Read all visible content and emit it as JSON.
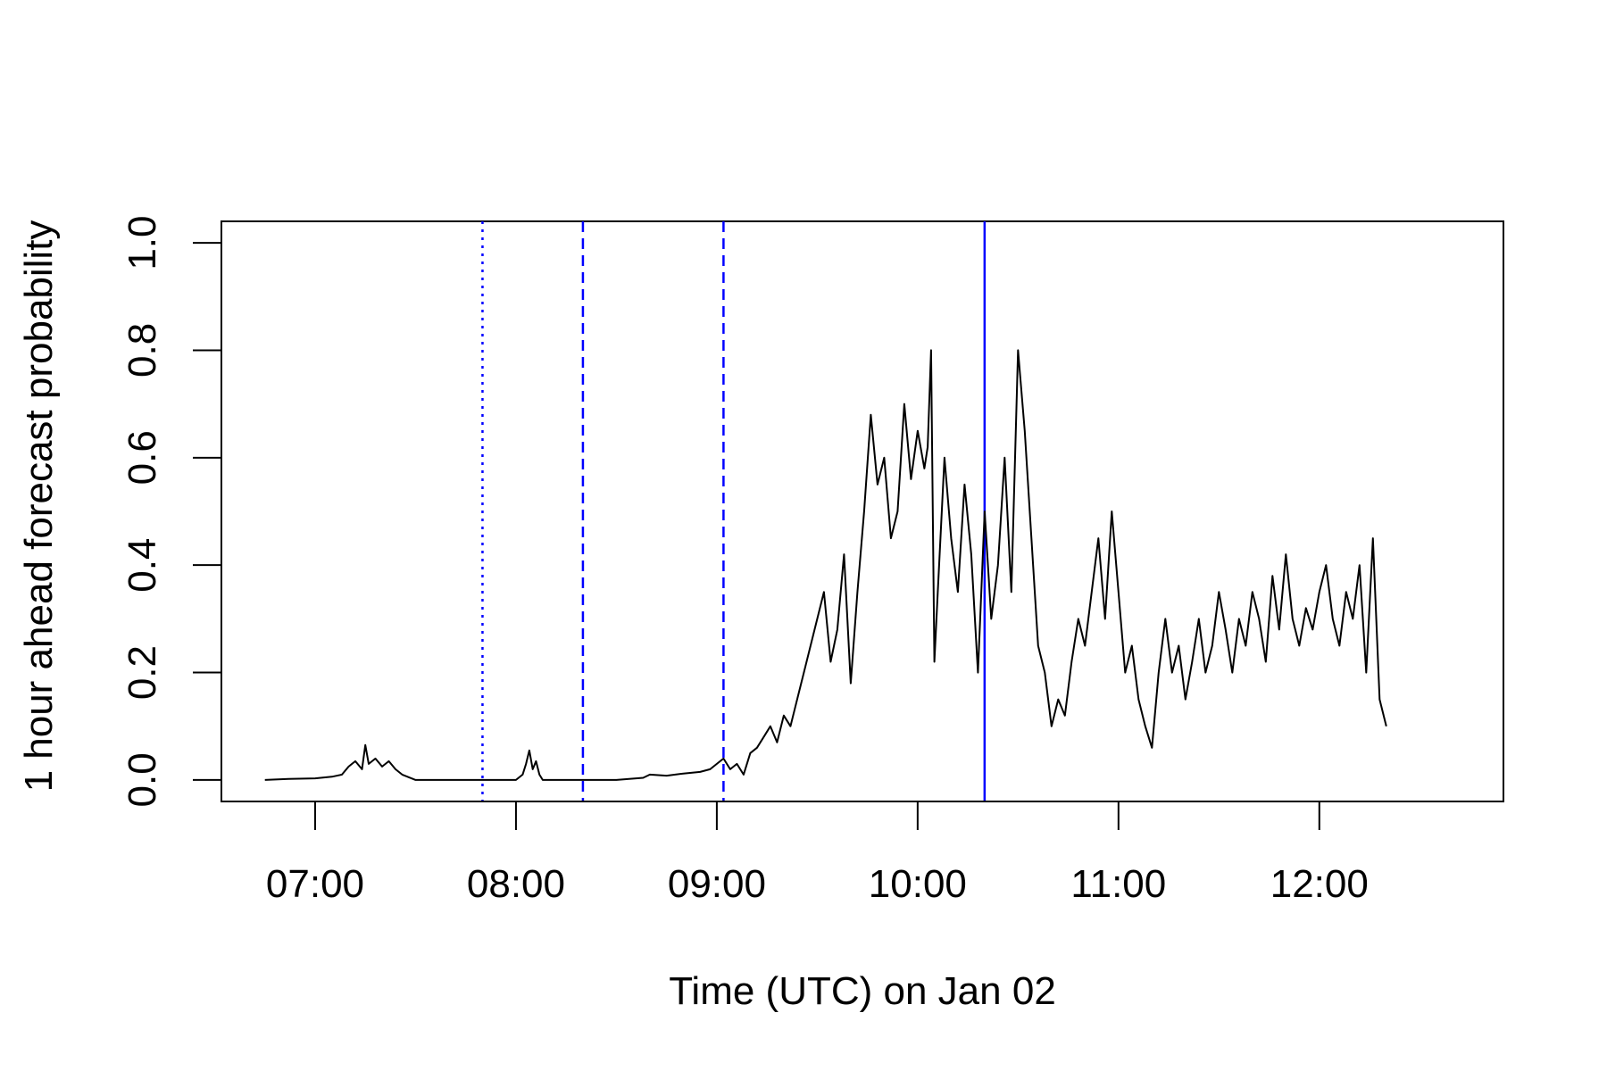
{
  "chart_data": {
    "type": "line",
    "title": "",
    "xlabel": "Time (UTC) on Jan 02",
    "ylabel": "1 hour ahead forecast probability",
    "xlim": [
      "06:32",
      "12:55"
    ],
    "ylim": [
      -0.04,
      1.04
    ],
    "x_ticks": [
      "07:00",
      "08:00",
      "09:00",
      "10:00",
      "11:00",
      "12:00"
    ],
    "y_ticks": [
      "0.0",
      "0.2",
      "0.4",
      "0.6",
      "0.8",
      "1.0"
    ],
    "grid": false,
    "legend": "none",
    "line_color": "#000000",
    "vline_color": "#0000ff",
    "vlines": [
      {
        "x": "07:50",
        "style": "dotted"
      },
      {
        "x": "08:20",
        "style": "dashed"
      },
      {
        "x": "09:02",
        "style": "dashed"
      },
      {
        "x": "10:20",
        "style": "solid"
      }
    ],
    "series": [
      {
        "x": [
          "06:45",
          "06:52",
          "07:00",
          "07:05",
          "07:08",
          "07:10",
          "07:12",
          "07:14",
          "07:15",
          "07:16",
          "07:18",
          "07:20",
          "07:22",
          "07:24",
          "07:26",
          "07:30",
          "07:40",
          "07:50",
          "07:55",
          "08:00",
          "08:02",
          "08:03",
          "08:04",
          "08:05",
          "08:06",
          "08:07",
          "08:08",
          "08:09",
          "08:10",
          "08:15",
          "08:20",
          "08:30",
          "08:38",
          "08:40",
          "08:45",
          "08:50",
          "08:55",
          "08:58",
          "09:00",
          "09:02",
          "09:04",
          "09:06",
          "09:08",
          "09:10",
          "09:12",
          "09:14",
          "09:16",
          "09:18",
          "09:20",
          "09:22",
          "09:24",
          "09:26",
          "09:28",
          "09:30",
          "09:32",
          "09:34",
          "09:36",
          "09:38",
          "09:40",
          "09:42",
          "09:44",
          "09:46",
          "09:48",
          "09:50",
          "09:52",
          "09:54",
          "09:56",
          "09:58",
          "10:00",
          "10:02",
          "10:03",
          "10:04",
          "10:05",
          "10:06",
          "10:08",
          "10:10",
          "10:12",
          "10:14",
          "10:16",
          "10:18",
          "10:20",
          "10:22",
          "10:24",
          "10:26",
          "10:28",
          "10:30",
          "10:32",
          "10:34",
          "10:36",
          "10:38",
          "10:40",
          "10:42",
          "10:44",
          "10:46",
          "10:48",
          "10:50",
          "10:52",
          "10:54",
          "10:56",
          "10:58",
          "11:00",
          "11:02",
          "11:04",
          "11:06",
          "11:08",
          "11:10",
          "11:12",
          "11:14",
          "11:16",
          "11:18",
          "11:20",
          "11:22",
          "11:24",
          "11:26",
          "11:28",
          "11:30",
          "11:32",
          "11:34",
          "11:36",
          "11:38",
          "11:40",
          "11:42",
          "11:44",
          "11:46",
          "11:48",
          "11:50",
          "11:52",
          "11:54",
          "11:56",
          "11:58",
          "12:00",
          "12:02",
          "12:04",
          "12:06",
          "12:08",
          "12:10",
          "12:12",
          "12:14",
          "12:16",
          "12:18",
          "12:20"
        ],
        "values": [
          0.0,
          0.002,
          0.003,
          0.006,
          0.01,
          0.025,
          0.035,
          0.02,
          0.065,
          0.03,
          0.04,
          0.025,
          0.035,
          0.02,
          0.01,
          0.0,
          0.0,
          0.0,
          0.0,
          0.0,
          0.01,
          0.03,
          0.055,
          0.02,
          0.035,
          0.01,
          0.0,
          0.0,
          0.0,
          0.0,
          0.0,
          0.0,
          0.004,
          0.01,
          0.008,
          0.012,
          0.015,
          0.02,
          0.03,
          0.04,
          0.02,
          0.03,
          0.01,
          0.05,
          0.06,
          0.08,
          0.1,
          0.07,
          0.12,
          0.1,
          0.15,
          0.2,
          0.25,
          0.3,
          0.35,
          0.22,
          0.28,
          0.42,
          0.18,
          0.35,
          0.5,
          0.68,
          0.55,
          0.6,
          0.45,
          0.5,
          0.7,
          0.56,
          0.65,
          0.58,
          0.62,
          0.8,
          0.22,
          0.35,
          0.6,
          0.45,
          0.35,
          0.55,
          0.42,
          0.2,
          0.5,
          0.3,
          0.4,
          0.6,
          0.35,
          0.8,
          0.65,
          0.45,
          0.25,
          0.2,
          0.1,
          0.15,
          0.12,
          0.22,
          0.3,
          0.25,
          0.35,
          0.45,
          0.3,
          0.5,
          0.35,
          0.2,
          0.25,
          0.15,
          0.1,
          0.06,
          0.2,
          0.3,
          0.2,
          0.25,
          0.15,
          0.22,
          0.3,
          0.2,
          0.25,
          0.35,
          0.28,
          0.2,
          0.3,
          0.25,
          0.35,
          0.3,
          0.22,
          0.38,
          0.28,
          0.42,
          0.3,
          0.25,
          0.32,
          0.28,
          0.35,
          0.4,
          0.3,
          0.25,
          0.35,
          0.3,
          0.4,
          0.2,
          0.45,
          0.15,
          0.1
        ]
      }
    ]
  }
}
